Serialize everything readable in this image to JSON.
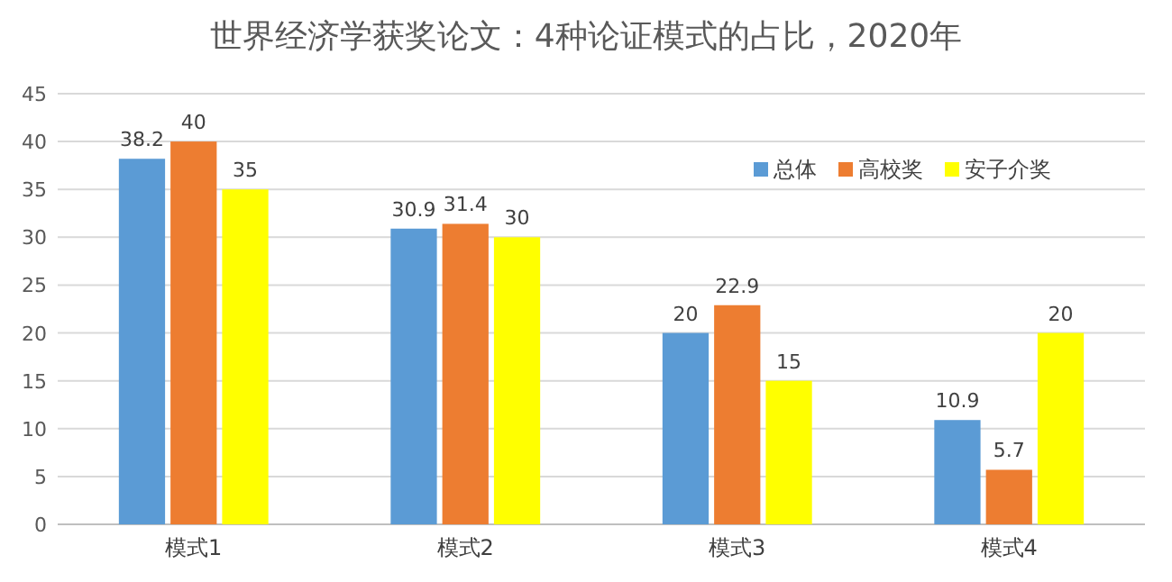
{
  "chart_data": {
    "type": "bar",
    "title": "世界经济学获奖论文：4种论证模式的占比，2020年",
    "categories": [
      "模式1",
      "模式2",
      "模式3",
      "模式4"
    ],
    "series": [
      {
        "name": "总体",
        "color": "#5b9bd5",
        "values": [
          38.2,
          30.9,
          20,
          10.9
        ]
      },
      {
        "name": "高校奖",
        "color": "#ed7d31",
        "values": [
          40,
          31.4,
          22.9,
          5.7
        ]
      },
      {
        "name": "安子介奖",
        "color": "#ffff00",
        "values": [
          35,
          30,
          15,
          20
        ]
      }
    ],
    "ylim": [
      0,
      45
    ],
    "yticks": [
      0,
      5,
      10,
      15,
      20,
      25,
      30,
      35,
      40,
      45
    ],
    "grid": "y",
    "legend": "top right",
    "data_labels": true
  }
}
